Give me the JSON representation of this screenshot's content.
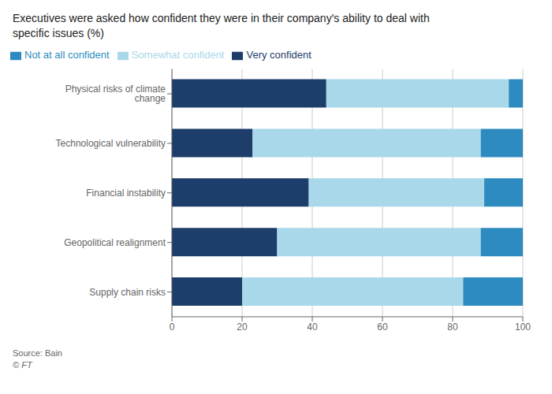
{
  "chart_data": {
    "type": "bar",
    "orientation": "horizontal",
    "stacked": true,
    "title": "Executives were asked how confident they were in their company's ability to deal with",
    "subtitle": "specific issues (%)",
    "annotations": [
      "Source: Bain",
      "© FT"
    ],
    "categories": [
      "Physical risks of climate change",
      "Technological vulnerability",
      "Financial instability",
      "Geopolitical realignment",
      "Supply chain risks"
    ],
    "series": [
      {
        "name": "Very confident",
        "color": "#1d3d6b",
        "values": [
          44,
          23,
          39,
          30,
          20
        ]
      },
      {
        "name": "Somewhat confident",
        "color": "#a8d8ea",
        "values": [
          52,
          65,
          50,
          58,
          63
        ]
      },
      {
        "name": "Not at all confident",
        "color": "#2e8bc0",
        "values": [
          4,
          12,
          11,
          12,
          17
        ]
      }
    ],
    "xlim": [
      0,
      100
    ],
    "xticks": [
      0,
      20,
      40,
      60,
      80,
      100
    ],
    "grid": true,
    "legend": "upper left"
  }
}
